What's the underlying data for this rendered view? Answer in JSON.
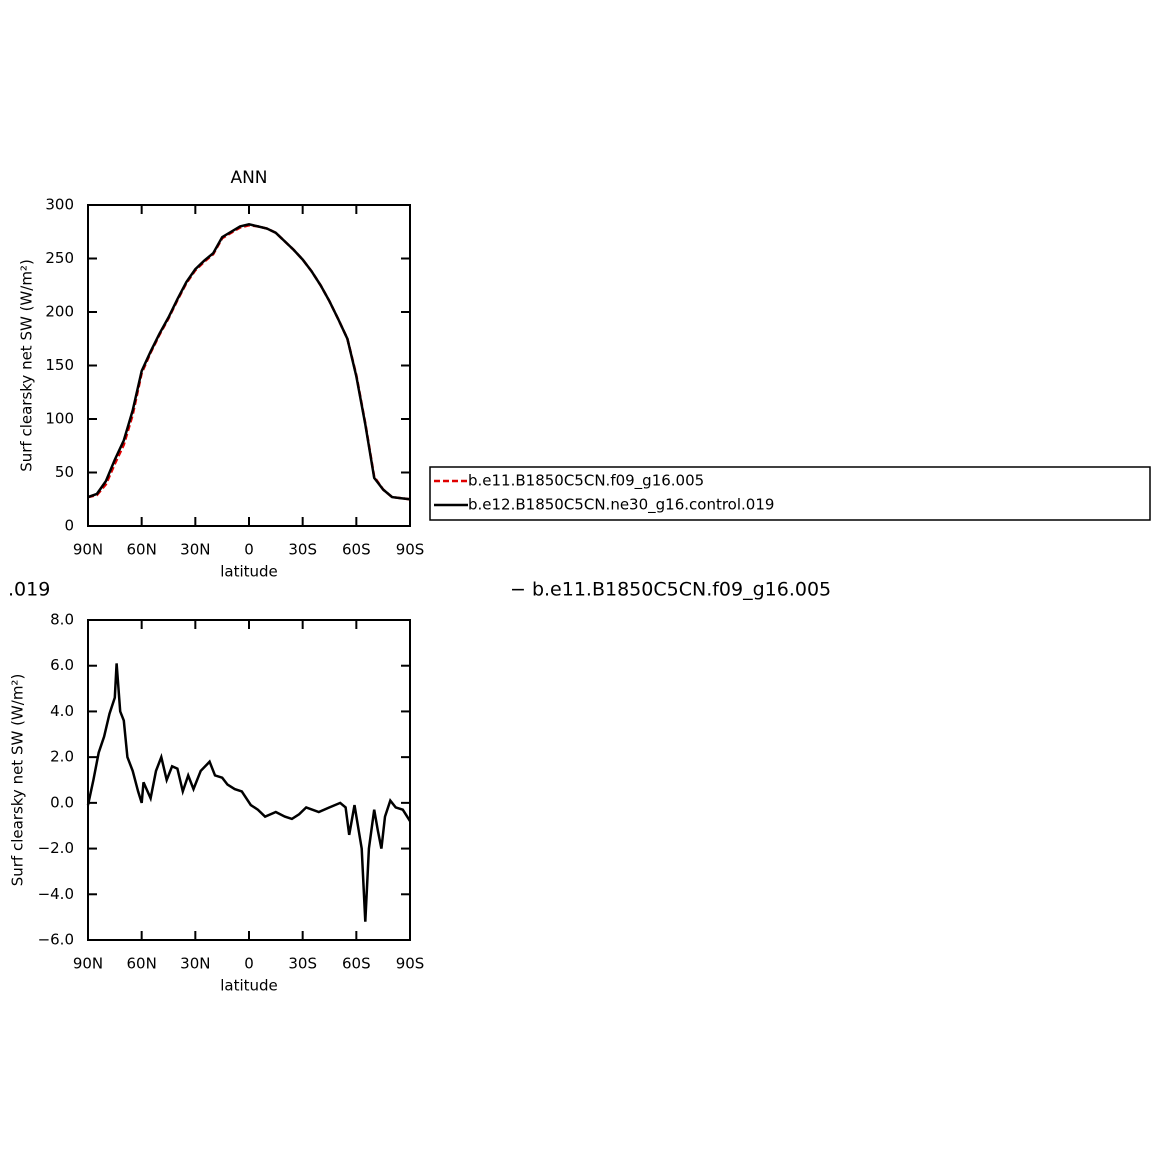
{
  "chart_data": [
    {
      "type": "line",
      "title": "ANN",
      "x_label": "latitude",
      "y_label": "Surf clearsky net SW (W/m²)",
      "xlim": [
        90,
        -90
      ],
      "xticks": [
        {
          "value": 90,
          "label": "90N"
        },
        {
          "value": 60,
          "label": "60N"
        },
        {
          "value": 30,
          "label": "30N"
        },
        0,
        {
          "value": -30,
          "label": "30S"
        },
        {
          "value": -60,
          "label": "60S"
        },
        {
          "value": -90,
          "label": "90S"
        }
      ],
      "ylim": [
        0,
        300
      ],
      "yticks": [
        0,
        50,
        100,
        150,
        200,
        250,
        300
      ],
      "legend": "right",
      "x": [
        90,
        85,
        80,
        75,
        70,
        65,
        60,
        55,
        50,
        45,
        40,
        35,
        30,
        25,
        20,
        15,
        10,
        5,
        0,
        -5,
        -10,
        -15,
        -20,
        -25,
        -30,
        -35,
        -40,
        -45,
        -50,
        -55,
        -60,
        -65,
        -70,
        -75,
        -80,
        -85,
        -90
      ],
      "series": [
        {
          "name": "b.e11.B1850C5CN.f09_g16.005",
          "color": "#e00000",
          "dash": true,
          "values": [
            27,
            29,
            39,
            58,
            76,
            104,
            143,
            162,
            179,
            194,
            211,
            227,
            239,
            247,
            254,
            269,
            274,
            279,
            281,
            280,
            278,
            274,
            266,
            258,
            249,
            238,
            225,
            210,
            193,
            175,
            141,
            96,
            46,
            34,
            27,
            26,
            25
          ]
        },
        {
          "name": "b.e12.B1850C5CN.ne30_g16.control.019",
          "color": "#000000",
          "dash": false,
          "values": [
            27,
            30,
            42,
            62,
            80,
            108,
            145,
            163,
            180,
            195,
            212,
            228,
            240,
            248,
            255,
            270,
            275,
            280,
            282,
            280,
            278,
            274,
            266,
            258,
            249,
            238,
            225,
            210,
            193,
            175,
            140,
            95,
            45,
            34,
            27,
            26,
            25
          ]
        }
      ]
    },
    {
      "type": "line",
      "x_label": "latitude",
      "y_label": "Surf clearsky net SW (W/m²)",
      "annotations": [
        ".019",
        "− b.e11.B1850C5CN.f09_g16.005"
      ],
      "xlim": [
        90,
        -90
      ],
      "xticks": [
        {
          "value": 90,
          "label": "90N"
        },
        {
          "value": 60,
          "label": "60N"
        },
        {
          "value": 30,
          "label": "30N"
        },
        0,
        {
          "value": -30,
          "label": "30S"
        },
        {
          "value": -60,
          "label": "60S"
        },
        {
          "value": -90,
          "label": "90S"
        }
      ],
      "ylim": [
        -6,
        8
      ],
      "yticks": [
        {
          "value": -6,
          "label": "−6.0"
        },
        {
          "value": -4,
          "label": "−4.0"
        },
        {
          "value": -2,
          "label": "−2.0"
        },
        {
          "value": 0,
          "label": "0.0"
        },
        {
          "value": 2,
          "label": "2.0"
        },
        {
          "value": 4,
          "label": "4.0"
        },
        {
          "value": 6,
          "label": "6.0"
        },
        {
          "value": 8,
          "label": "8.0"
        }
      ],
      "x": [
        90,
        87,
        84,
        81,
        78,
        75,
        74,
        72,
        70,
        68,
        65,
        62,
        60,
        59,
        55,
        52,
        49,
        46,
        43,
        40,
        37,
        34,
        31,
        27,
        22,
        19,
        15,
        12,
        8,
        4,
        -1,
        -5,
        -9,
        -15,
        -20,
        -24,
        -28,
        -32,
        -39,
        -45,
        -51,
        -54,
        -56,
        -59,
        -63,
        -65,
        -67,
        -70,
        -72,
        -74,
        -76,
        -79,
        -82,
        -86,
        -90
      ],
      "series": [
        {
          "color": "#000000",
          "dash": false,
          "values": [
            -0.1,
            1.0,
            2.2,
            2.9,
            3.9,
            4.6,
            6.1,
            4.0,
            3.6,
            2.0,
            1.4,
            0.5,
            0.0,
            0.9,
            0.2,
            1.4,
            2.0,
            1.0,
            1.6,
            1.5,
            0.5,
            1.2,
            0.6,
            1.4,
            1.8,
            1.2,
            1.1,
            0.8,
            0.6,
            0.5,
            -0.1,
            -0.3,
            -0.6,
            -0.4,
            -0.6,
            -0.7,
            -0.5,
            -0.2,
            -0.4,
            -0.2,
            0.0,
            -0.2,
            -1.4,
            -0.1,
            -2.0,
            -5.2,
            -2.0,
            -0.3,
            -1.2,
            -2.0,
            -0.6,
            0.1,
            -0.2,
            -0.3,
            -0.8
          ]
        }
      ]
    }
  ]
}
